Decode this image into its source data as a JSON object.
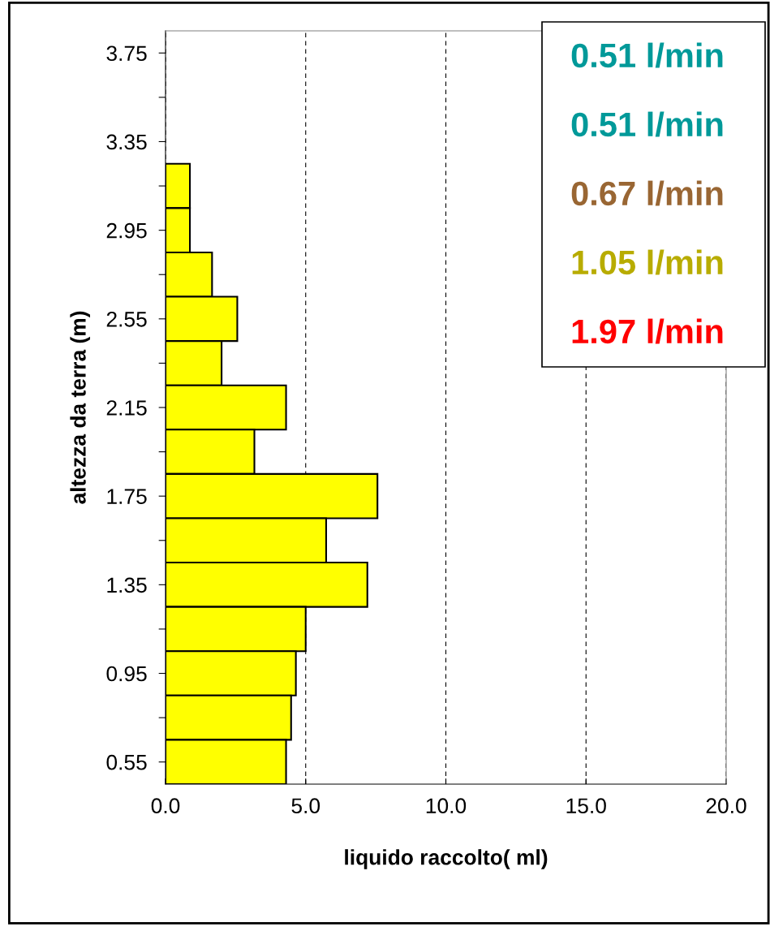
{
  "chart_data": {
    "type": "bar",
    "orientation": "horizontal",
    "xlabel": "liquido raccolto( ml)",
    "ylabel": "altezza da terra (m)",
    "categories": [
      "3.75",
      null,
      "3.35",
      null,
      "2.95",
      null,
      "2.55",
      null,
      "2.15",
      null,
      "1.75",
      null,
      "1.35",
      null,
      "0.95",
      null,
      "0.55"
    ],
    "values": [
      null,
      null,
      null,
      0.87,
      0.87,
      1.66,
      2.56,
      2.0,
      4.3,
      3.17,
      7.56,
      5.73,
      7.2,
      5.0,
      4.65,
      4.48,
      4.3
    ],
    "color": "#ffff00",
    "xlim": [
      0,
      20
    ],
    "xticks": [
      {
        "value": 0,
        "label": "0.0"
      },
      {
        "value": 5,
        "label": "5.0"
      },
      {
        "value": 10,
        "label": "10.0"
      },
      {
        "value": 15,
        "label": "15.0"
      },
      {
        "value": 20,
        "label": "20.0"
      }
    ],
    "grid": "x",
    "annotations": [
      "0.51 l/min",
      "0.51 l/min",
      "0.67 l/min",
      "1.05 l/min",
      "1.97 l/min"
    ]
  }
}
